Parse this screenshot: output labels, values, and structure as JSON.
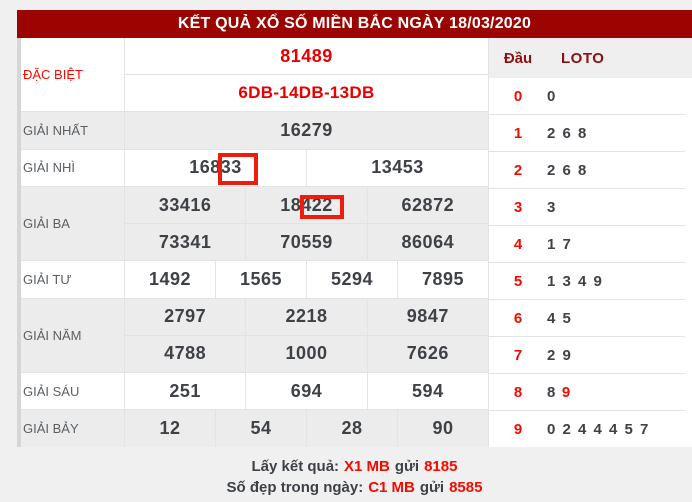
{
  "header": {
    "title": "KẾT QUẢ XỔ SỐ MIỀN BẮC NGÀY 18/03/2020"
  },
  "prize_table": {
    "rows": [
      {
        "label": "ĐẶC BIỆT",
        "lines": [
          [
            "81489"
          ],
          [
            "6DB-14DB-13DB"
          ]
        ]
      },
      {
        "label": "GIẢI NHẤT",
        "lines": [
          [
            "16279"
          ]
        ]
      },
      {
        "label": "GIẢI NHÌ",
        "lines": [
          [
            "16833",
            "13453"
          ]
        ]
      },
      {
        "label": "GIẢI BA",
        "lines": [
          [
            "33416",
            "18422",
            "62872"
          ],
          [
            "73341",
            "70559",
            "86064"
          ]
        ]
      },
      {
        "label": "GIẢI TƯ",
        "lines": [
          [
            "1492",
            "1565",
            "5294",
            "7895"
          ]
        ]
      },
      {
        "label": "GIẢI NĂM",
        "lines": [
          [
            "2797",
            "2218",
            "9847"
          ],
          [
            "4788",
            "1000",
            "7626"
          ]
        ]
      },
      {
        "label": "GIẢI SÁU",
        "lines": [
          [
            "251",
            "694",
            "594"
          ]
        ]
      },
      {
        "label": "GIẢI BẢY",
        "lines": [
          [
            "12",
            "54",
            "28",
            "90"
          ]
        ]
      }
    ],
    "highlight_boxes": [
      {
        "prize": "GIẢI NHÌ",
        "value": "16833",
        "boxed_digits": "33"
      },
      {
        "prize": "GIẢI BA",
        "value": "18422",
        "boxed_digits": "422"
      }
    ]
  },
  "loto_panel": {
    "dau_header": "Đầu",
    "loto_header": "LOTO",
    "rows": [
      {
        "dau": "0",
        "loto": "0",
        "loto_red": ""
      },
      {
        "dau": "1",
        "loto": "2 6 8",
        "loto_red": ""
      },
      {
        "dau": "2",
        "loto": "2 6 8",
        "loto_red": ""
      },
      {
        "dau": "3",
        "loto": "3",
        "loto_red": ""
      },
      {
        "dau": "4",
        "loto": "1 7",
        "loto_red": ""
      },
      {
        "dau": "5",
        "loto": "1 3 4 9",
        "loto_red": ""
      },
      {
        "dau": "6",
        "loto": "4 5",
        "loto_red": ""
      },
      {
        "dau": "7",
        "loto": "2 9",
        "loto_red": ""
      },
      {
        "dau": "8",
        "loto": "8",
        "loto_red": "9"
      },
      {
        "dau": "9",
        "loto": "0 2 4 4 4 5 7",
        "loto_red": ""
      }
    ]
  },
  "footer": {
    "line1_label": "Lấy kết quả:",
    "line1_code": "X1 MB",
    "line1_mid": "gửi",
    "line1_number": "8185",
    "line2_label": "Số đẹp trong ngày:",
    "line2_code": "C1 MB",
    "line2_mid": "gửi",
    "line2_number": "8585"
  },
  "colors": {
    "header_bg": "#9b0400",
    "accent_red": "#f30b00",
    "value_red": "#e80000",
    "loto_header_maroon": "#8c1115",
    "number_text": "#3e4247",
    "label_text": "#5a5f64",
    "alt_row_bg": "#ececec",
    "highlight_box_border": "#ee1c0c"
  }
}
